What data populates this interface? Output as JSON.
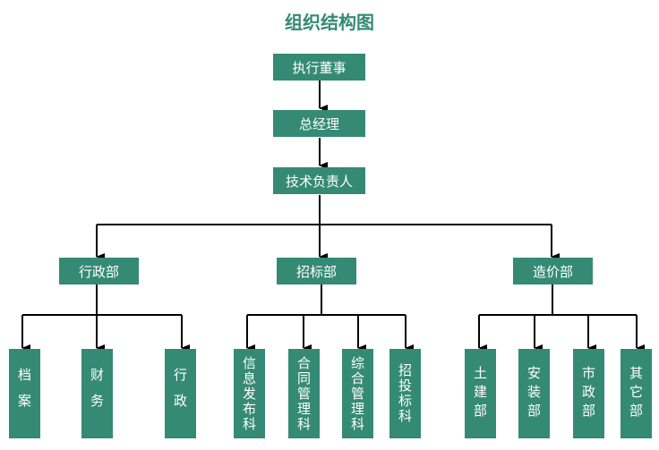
{
  "title": "组织结构图",
  "colors": {
    "box": "#358a74",
    "connector": "#000000"
  },
  "levels": {
    "executive_director": "执行董事",
    "general_manager": "总经理",
    "technical_lead": "技术负责人"
  },
  "departments": [
    {
      "name": "行政部",
      "units": [
        "档案",
        "财务",
        "行政"
      ]
    },
    {
      "name": "招标部",
      "units": [
        "信息发布科",
        "合同管理科",
        "综合管理科",
        "招投标科"
      ]
    },
    {
      "name": "造价部",
      "units": [
        "土建部",
        "安装部",
        "市政部",
        "其它部"
      ]
    }
  ]
}
